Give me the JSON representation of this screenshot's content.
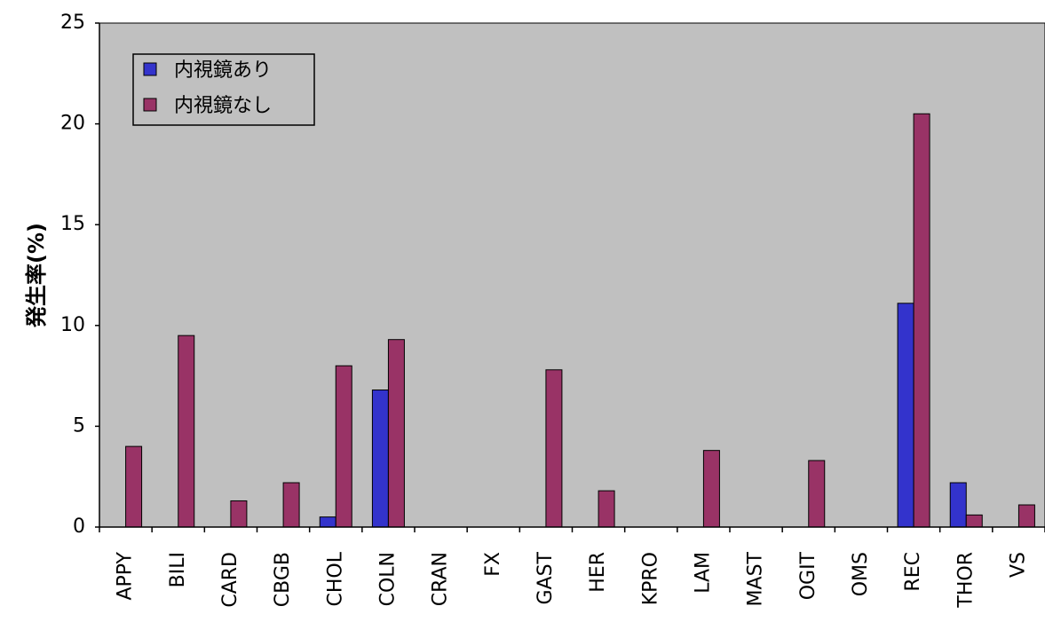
{
  "chart_data": {
    "type": "bar",
    "title": "",
    "xlabel": "",
    "ylabel": "発生率(%)",
    "ylim": [
      0,
      25
    ],
    "yticks": [
      "0",
      "5",
      "10",
      "15",
      "20",
      "25"
    ],
    "grid": false,
    "legend_position": "top-left",
    "plot_background": "#c0c0c0",
    "categories": [
      "APPY",
      "BILI",
      "CARD",
      "CBGB",
      "CHOL",
      "COLN",
      "CRAN",
      "FX",
      "GAST",
      "HER",
      "KPRO",
      "LAM",
      "MAST",
      "OGIT",
      "OMS",
      "REC",
      "THOR",
      "VS"
    ],
    "series": [
      {
        "name": "内視鏡あり",
        "color": "#3333cc",
        "values": [
          0,
          0,
          0,
          0,
          0.5,
          6.8,
          0,
          0,
          0,
          0,
          0,
          0,
          0,
          0,
          0,
          11.1,
          2.2,
          0
        ]
      },
      {
        "name": "内視鏡なし",
        "color": "#993366",
        "values": [
          4.0,
          9.5,
          1.3,
          2.2,
          8.0,
          9.3,
          0,
          0,
          7.8,
          1.8,
          0,
          3.8,
          0,
          3.3,
          0,
          20.5,
          0.6,
          1.1
        ]
      }
    ]
  }
}
